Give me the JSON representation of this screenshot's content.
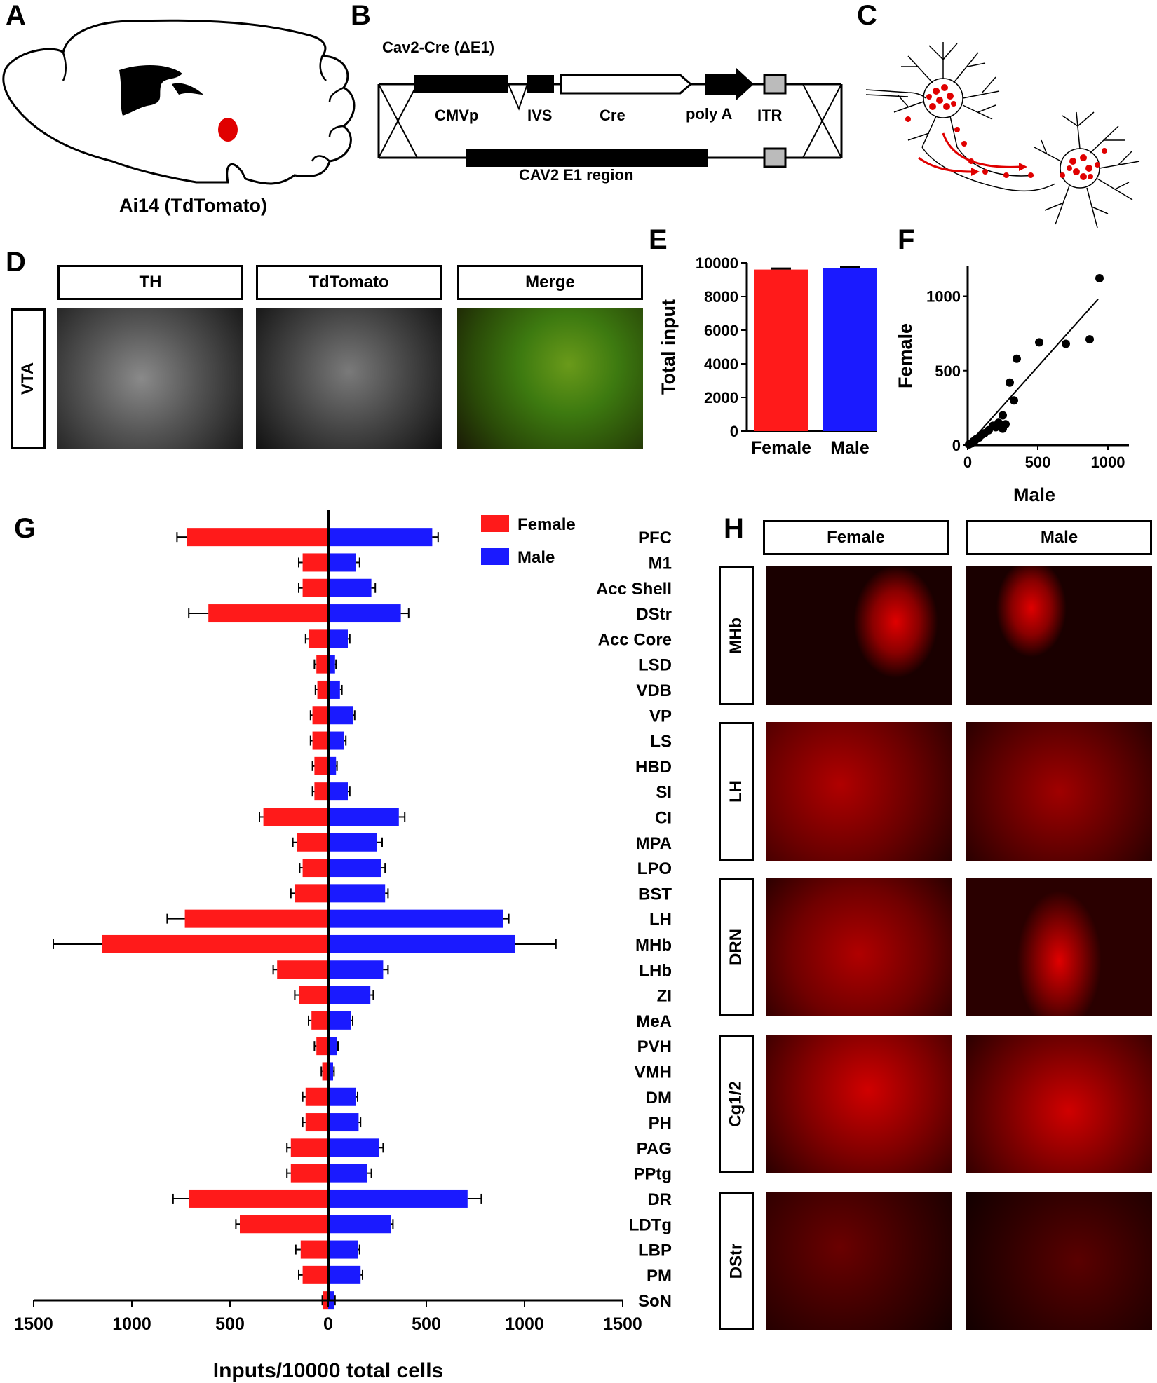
{
  "panels": {
    "A": {
      "letter": "A",
      "caption": "Ai14 (TdTomato)"
    },
    "B": {
      "letter": "B",
      "title": "Cav2-Cre (ΔE1)",
      "elements": [
        "CMVp",
        "IVS",
        "Cre",
        "poly A",
        "ITR"
      ],
      "region": "CAV2 E1 region"
    },
    "C": {
      "letter": "C"
    },
    "D": {
      "letter": "D",
      "columns": [
        "TH",
        "TdTomato",
        "Merge"
      ],
      "row": "VTA"
    },
    "E": {
      "letter": "E"
    },
    "F": {
      "letter": "F"
    },
    "G": {
      "letter": "G"
    },
    "H": {
      "letter": "H",
      "columns": [
        "Female",
        "Male"
      ],
      "rows": [
        "MHb",
        "LH",
        "DRN",
        "Cg1/2",
        "DStr"
      ]
    }
  },
  "colors": {
    "female": "#ff1a1a",
    "male": "#1a1aff",
    "tdtomato": "#e00000"
  },
  "chart_data": [
    {
      "id": "E",
      "type": "bar",
      "categories": [
        "Female",
        "Male"
      ],
      "values": [
        9600,
        9700
      ],
      "errors": [
        60,
        60
      ],
      "ylabel": "Total input",
      "ylim": [
        0,
        10000
      ],
      "yticks": [
        "0",
        "2000",
        "4000",
        "6000",
        "8000",
        "10000"
      ]
    },
    {
      "id": "F",
      "type": "scatter",
      "xlabel": "Male",
      "ylabel": "Female",
      "xlim": [
        0,
        1150
      ],
      "ylim": [
        0,
        1200
      ],
      "xticks": [
        "0",
        "500",
        "1000"
      ],
      "yticks": [
        "0",
        "500",
        "1000"
      ],
      "points": [
        [
          10,
          5
        ],
        [
          20,
          10
        ],
        [
          30,
          15
        ],
        [
          40,
          25
        ],
        [
          50,
          30
        ],
        [
          60,
          40
        ],
        [
          80,
          50
        ],
        [
          100,
          70
        ],
        [
          120,
          80
        ],
        [
          150,
          100
        ],
        [
          180,
          130
        ],
        [
          200,
          120
        ],
        [
          220,
          150
        ],
        [
          250,
          110
        ],
        [
          270,
          140
        ],
        [
          300,
          420
        ],
        [
          330,
          300
        ],
        [
          350,
          580
        ],
        [
          250,
          200
        ],
        [
          510,
          690
        ],
        [
          700,
          680
        ],
        [
          870,
          710
        ],
        [
          940,
          1120
        ]
      ],
      "fit": [
        [
          0,
          0
        ],
        [
          930,
          980
        ]
      ]
    },
    {
      "id": "G",
      "type": "bar",
      "orientation": "horizontal-mirrored",
      "xlabel": "Inputs/10000 total cells",
      "xticks": [
        "1500",
        "1000",
        "500",
        "0",
        "500",
        "1000",
        "1500"
      ],
      "xlim": [
        -1500,
        1500
      ],
      "categories": [
        "PFC",
        "M1",
        "Acc Shell",
        "DStr",
        "Acc Core",
        "LSD",
        "VDB",
        "VP",
        "LS",
        "HBD",
        "SI",
        "CI",
        "MPA",
        "LPO",
        "BST",
        "LH",
        "MHb",
        "LHb",
        "ZI",
        "MeA",
        "PVH",
        "VMH",
        "DM",
        "PH",
        "PAG",
        "PPtg",
        "DR",
        "LDTg",
        "LBP",
        "PM",
        "SoN"
      ],
      "series": [
        {
          "name": "Female",
          "values": [
            720,
            130,
            130,
            610,
            100,
            60,
            55,
            80,
            80,
            70,
            70,
            330,
            160,
            130,
            170,
            730,
            1150,
            260,
            150,
            85,
            60,
            30,
            115,
            115,
            190,
            190,
            710,
            450,
            140,
            130,
            25
          ],
          "errors": [
            50,
            20,
            20,
            100,
            15,
            10,
            10,
            10,
            10,
            10,
            10,
            20,
            20,
            15,
            20,
            90,
            250,
            20,
            20,
            15,
            10,
            5,
            15,
            15,
            20,
            20,
            80,
            20,
            25,
            20,
            5
          ]
        },
        {
          "name": "Male",
          "values": [
            530,
            140,
            220,
            370,
            100,
            35,
            60,
            125,
            80,
            40,
            100,
            360,
            250,
            270,
            290,
            890,
            950,
            280,
            215,
            115,
            45,
            25,
            140,
            155,
            260,
            200,
            710,
            320,
            150,
            165,
            30
          ],
          "errors": [
            30,
            20,
            20,
            40,
            10,
            5,
            10,
            10,
            10,
            5,
            10,
            30,
            25,
            20,
            15,
            30,
            210,
            25,
            15,
            10,
            5,
            5,
            10,
            10,
            20,
            20,
            70,
            10,
            10,
            10,
            5
          ]
        }
      ],
      "legend": "top-right"
    }
  ]
}
